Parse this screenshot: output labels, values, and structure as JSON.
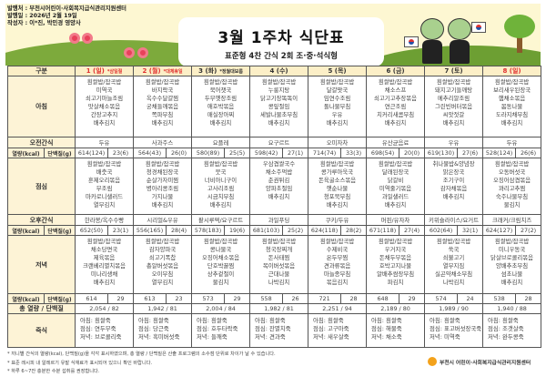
{
  "header": {
    "publisher": "발행처 : 부천시어린이·사회복지급식관리지원센터",
    "date": "발행일 : 2026년 2월 19일",
    "author": "작성자 : 이*진, 박민경 영양사",
    "title": "3월 1주차 식단표",
    "subtitle": "표준형 4찬 간식 2회 조·중·석식형"
  },
  "colors": {
    "holiday": "#e03030",
    "label_bg": "#fdf3d6",
    "header_bg": "#fcefc7"
  },
  "labels": {
    "category": "구분",
    "breakfast": "아침",
    "am_snack": "오전간식",
    "kcal": "열량(kcal)",
    "protein": "단백질(g)",
    "lunch": "점심",
    "pm_snack": "오후간식",
    "dinner": "저녁",
    "total": "총 열량 / 단백질",
    "porridge": "죽식"
  },
  "days": [
    {
      "day": "1 (일)",
      "note": "*삼일절",
      "holiday": true,
      "breakfast": [
        "흰쌀밥/잡곡밥",
        "미역국",
        "쇠고기마늘조림",
        "맛살채소볶음",
        "간장고추지",
        "배추김치"
      ],
      "am_snack": "두유",
      "am_kcal": "614(124)",
      "am_protein": "23(6)",
      "lunch": [
        "흰쌀밥/잡곡밥",
        "배춧국",
        "훈제오리볶음",
        "무조림",
        "마카로니샐러드",
        "열무김치"
      ],
      "pm_snack": "한라봉/옥수수빵",
      "pm_kcal": "652(50)",
      "pm_protein": "23(1)",
      "dinner": [
        "흰쌀밥/잡곡밥",
        "채소당면국",
        "제육볶음",
        "크랜베리멸치볶음",
        "미나리생채",
        "배추김치"
      ],
      "dn_kcal": "614",
      "dn_protein": "29",
      "total": "2,054 / 82",
      "porridge": [
        "아침: 흰쌀죽",
        "점심: 연두부죽",
        "저녁: 브로콜리죽"
      ]
    },
    {
      "day": "2 (월)",
      "note": "*대체휴일",
      "holiday": true,
      "breakfast": [
        "흰쌀밥/잡곡밥",
        "바지락국",
        "옥수수달걀찜",
        "궁채들깨볶음",
        "쪽파무침",
        "배추김치"
      ],
      "am_snack": "사과주스",
      "am_kcal": "564(43)",
      "am_protein": "26(0)",
      "lunch": [
        "흰쌀밥/잡곡밥",
        "청경채된장국",
        "순살가자미찜",
        "병아리콩조림",
        "가지나물",
        "배추김치"
      ],
      "pm_snack": "시리얼&우유",
      "pm_kcal": "556(165)",
      "pm_protein": "28(4)",
      "dinner": [
        "흰쌀밥/잡곡밥",
        "감자양파국",
        "쇠고기폭찹",
        "총알버섯볶음",
        "오이무침",
        "열무김치"
      ],
      "dn_kcal": "613",
      "dn_protein": "23",
      "total": "1,942 / 81",
      "porridge": [
        "아침: 흰쌀죽",
        "점심: 당근죽",
        "저녁: 흑미버섯죽"
      ]
    },
    {
      "day": "3 (화)",
      "note": "*정월대보름",
      "holiday": false,
      "breakfast": [
        "흰쌀밥/잡곡밥",
        "북어챗국",
        "두부옛장조림",
        "애호박볶음",
        "매실장아찌",
        "배추김치"
      ],
      "am_snack": "요플레",
      "am_kcal": "580(89)",
      "am_protein": "25(5)",
      "lunch": [
        "흰쌀밥/잡곡밥",
        "뭇국",
        "너비아니구이",
        "고사리조림",
        "시금치무침",
        "배추김치"
      ],
      "pm_snack": "팥시루떡/요구르트",
      "pm_kcal": "578(183)",
      "pm_protein": "19(6)",
      "dinner": [
        "흰쌀밥/잡곡밥",
        "콩나물국",
        "오징어채소볶음",
        "단호박꿀찜",
        "상추겉절이",
        "물김치"
      ],
      "dn_kcal": "573",
      "dn_protein": "29",
      "total": "2,004 / 84",
      "porridge": [
        "아침: 흰쌀죽",
        "점심: 호두타락죽",
        "저녁: 들깨죽"
      ]
    },
    {
      "day": "4 (수)",
      "note": "",
      "holiday": false,
      "breakfast": [
        "흰쌀밥/잡곡밥",
        "누룽지탕",
        "닭고기장똑똑이",
        "콩잎절임",
        "세발나물초무침",
        "배추김치"
      ],
      "am_snack": "요구르트",
      "am_kcal": "598(42)",
      "am_protein": "27(1)",
      "lunch": [
        "우삼겹쌀국수",
        "채소주먹밥",
        "춘권튀김",
        "양파초절임",
        "배추김치"
      ],
      "pm_snack": "과일푸딩",
      "pm_kcal": "681(103)",
      "pm_protein": "25(2)",
      "dinner": [
        "흰쌀밥/잡곡밥",
        "청국장찌개",
        "돈사태찜",
        "목이버섯볶음",
        "근대나물",
        "나박김치"
      ],
      "dn_kcal": "558",
      "dn_protein": "26",
      "total": "1,982 / 81",
      "porridge": [
        "아침: 흰쌀죽",
        "점심: 잔멸치죽",
        "저녁: 견과죽"
      ]
    },
    {
      "day": "5 (목)",
      "note": "",
      "holiday": false,
      "breakfast": [
        "흰쌀밥/잡곡밥",
        "달걀팟국",
        "임연수조림",
        "돌나물무침",
        "우유",
        "배추김치"
      ],
      "am_snack": "오미자차",
      "am_kcal": "714(74)",
      "am_protein": "33(3)",
      "lunch": [
        "흰쌀밥/잡곡밥",
        "콩가루아욱국",
        "돈육굴소스볶음",
        "햇순나물",
        "청포묵무침",
        "배추김치"
      ],
      "pm_snack": "쿠키/두유",
      "pm_kcal": "624(118)",
      "pm_protein": "28(2)",
      "dinner": [
        "흰쌀밥/잡곡밥",
        "수제비국",
        "온두부찜",
        "견과류볶음",
        "마늘종무침",
        "볶음김치"
      ],
      "dn_kcal": "721",
      "dn_protein": "28",
      "total": "2,251 / 94",
      "porridge": [
        "아침: 흰쌀죽",
        "점심: 고구마죽",
        "저녁: 새우살죽"
      ]
    },
    {
      "day": "6 (금)",
      "note": "",
      "holiday": false,
      "breakfast": [
        "흰쌀밥/잡곡밥",
        "채소스프",
        "쇠고기고추장볶음",
        "연근조림",
        "치커리새콤무침",
        "배추김치"
      ],
      "am_snack": "유산균음료",
      "am_kcal": "698(54)",
      "am_protein": "20(0)",
      "lunch": [
        "흰쌀밥/잡곡밥",
        "달래된장국",
        "닭갈비",
        "미역줄기볶음",
        "과일샐러드",
        "배추김치"
      ],
      "pm_snack": "머핀/유자차",
      "pm_kcal": "671(118)",
      "pm_protein": "27(4)",
      "dinner": [
        "흰쌀밥/잡곡밥",
        "우거지국",
        "돈채두부볶음",
        "호박고지나물",
        "알배추쌈장무침",
        "파김치"
      ],
      "dn_kcal": "648",
      "dn_protein": "29",
      "total": "2,189 / 80",
      "porridge": [
        "아침: 흰쌀죽",
        "점심: 해물죽",
        "저녁: 채소죽"
      ]
    },
    {
      "day": "7 (토)",
      "note": "",
      "holiday": false,
      "breakfast": [
        "흰쌀밥/잡곡밥",
        "돼지고기들깨탕",
        "메추리알조림",
        "그린빈버터볶음",
        "씨앗젓갈",
        "배추김치"
      ],
      "am_snack": "우유",
      "am_kcal": "619(130)",
      "am_protein": "27(6)",
      "lunch": [
        "취나물밥&양념장",
        "맑은장국",
        "조기구이",
        "감자채볶음",
        "배추김치"
      ],
      "pm_snack": "키위슬라이스/요거트",
      "pm_kcal": "602(64)",
      "pm_protein": "32(1)",
      "dinner": [
        "흰쌀밥/잡곡밥",
        "쑥국",
        "쇠불고기",
        "열무지짐",
        "실곤약채소무침",
        "나박김치"
      ],
      "dn_kcal": "574",
      "dn_protein": "24",
      "total": "1,989 / 90",
      "porridge": [
        "아침: 흰쌀죽",
        "점심: 표고버섯장국죽",
        "저녁: 미역죽"
      ]
    },
    {
      "day": "8 (일)",
      "note": "",
      "holiday": true,
      "breakfast": [
        "흰쌀밥/잡곡밥",
        "보리새우된장국",
        "햄채소볶음",
        "봄동나물",
        "도라지채무침",
        "배추김치"
      ],
      "am_snack": "두유",
      "am_kcal": "528(124)",
      "am_protein": "26(6)",
      "lunch": [
        "흰쌀밥/잡곡밥",
        "오동버섯국",
        "오징어삼겹볶음",
        "꽈리고추찜",
        "숙주나물무침",
        "물김치"
      ],
      "pm_snack": "크래커/크림치즈",
      "pm_kcal": "624(127)",
      "pm_protein": "27(2)",
      "dinner": [
        "흰쌀밥/잡곡밥",
        "미니우동국",
        "닭살브로콜리볶음",
        "양배추초무침",
        "섬초나물",
        "배추김치"
      ],
      "dn_kcal": "538",
      "dn_protein": "28",
      "total": "1,940 / 88",
      "porridge": [
        "아침: 흰쌀죽",
        "점심: 조갯살죽",
        "저녁: 완두콩죽"
      ]
    }
  ],
  "footnotes": [
    "* 끼니별 간식의 열량(kcal), 단백질(g)을 각각 표시하였으며, 총 열량 / 단백질은 산출 프로그램의 소수점 단위로 차이가 날 수 있습니다.",
    "* 표준 레시피 내 알레르기 유발 식재료가 표시되어 있으니 확인 바랍니다.",
    "* 하루 6~7잔 충분한 수분 섭취를 권장합니다."
  ],
  "logo_text": "부천시 어린이·사회복지급식관리지원센터"
}
